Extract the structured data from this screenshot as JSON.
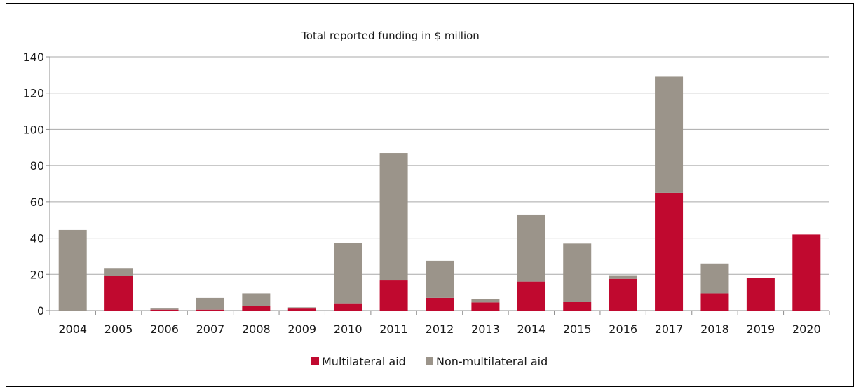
{
  "chart_data": {
    "type": "bar",
    "stacked": true,
    "title": "Total reported funding in $ million",
    "xlabel": "",
    "ylabel": "",
    "ylim": [
      0,
      140
    ],
    "yticks": [
      0,
      20,
      40,
      60,
      80,
      100,
      120,
      140
    ],
    "grid": true,
    "legend_position": "bottom",
    "categories": [
      "2004",
      "2005",
      "2006",
      "2007",
      "2008",
      "2009",
      "2010",
      "2011",
      "2012",
      "2013",
      "2014",
      "2015",
      "2016",
      "2017",
      "2018",
      "2019",
      "2020"
    ],
    "series": [
      {
        "name": "Multilateral aid",
        "color": "#c0092f",
        "values": [
          0,
          19,
          0.5,
          0.5,
          2.5,
          1.5,
          4,
          17,
          7,
          4.5,
          16,
          5,
          17.5,
          65,
          9.5,
          18,
          42
        ]
      },
      {
        "name": "Non-multilateral aid",
        "color": "#9b948a",
        "values": [
          44.5,
          4.5,
          1,
          6.5,
          7,
          0.3,
          33.5,
          70,
          20.5,
          2,
          37,
          32,
          2,
          64,
          16.5,
          0,
          0
        ]
      }
    ]
  }
}
